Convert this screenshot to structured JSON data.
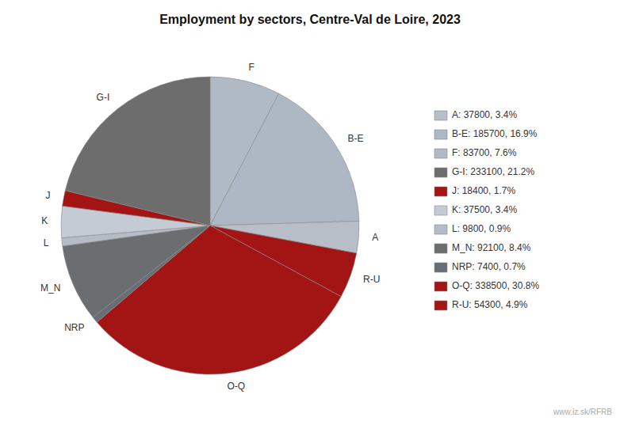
{
  "chart_data": {
    "type": "pie",
    "title": "Employment by sectors, Centre-Val de Loire, 2023",
    "categories": [
      "F",
      "B-E",
      "A",
      "R-U",
      "O-Q",
      "NRP",
      "M_N",
      "L",
      "K",
      "J",
      "G-I"
    ],
    "values": [
      83700,
      185700,
      37800,
      54300,
      338500,
      7400,
      92100,
      9800,
      37500,
      18400,
      233100
    ],
    "colors": [
      "#b0bac5",
      "#adb8c4",
      "#b8bec8",
      "#a31515",
      "#a31515",
      "#686e76",
      "#6a6e70",
      "#b5bcc8",
      "#c4cbd5",
      "#a31515",
      "#6d6d6d"
    ],
    "legend_entries": [
      {
        "category": "A",
        "label": "A: 37800, 3.4%"
      },
      {
        "category": "B-E",
        "label": "B-E: 185700, 16.9%"
      },
      {
        "category": "F",
        "label": "F: 83700, 7.6%"
      },
      {
        "category": "G-I",
        "label": "G-I: 233100, 21.2%"
      },
      {
        "category": "J",
        "label": "J: 18400, 1.7%"
      },
      {
        "category": "K",
        "label": "K: 37500, 3.4%"
      },
      {
        "category": "L",
        "label": "L: 9800, 0.9%"
      },
      {
        "category": "M_N",
        "label": "M_N: 92100, 8.4%"
      },
      {
        "category": "NRP",
        "label": "NRP: 7400, 0.7%"
      },
      {
        "category": "O-Q",
        "label": "O-Q: 338500, 30.8%"
      },
      {
        "category": "R-U",
        "label": "R-U: 54300, 4.9%"
      }
    ],
    "annotations": [
      "www.iz.sk/RFRB"
    ]
  }
}
